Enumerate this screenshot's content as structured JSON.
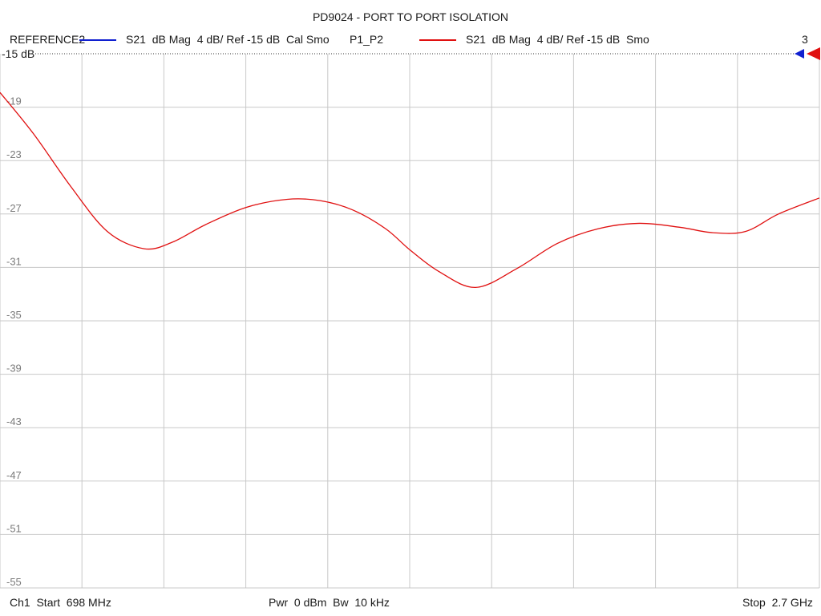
{
  "chart_data": {
    "type": "line",
    "title": "PD9024 - PORT TO PORT ISOLATION",
    "reference_label": "-15 dB",
    "ylim": [
      -55,
      -15
    ],
    "yticks": [
      "-19",
      "-23",
      "-27",
      "-31",
      "-35",
      "-39",
      "-43",
      "-47",
      "-51",
      "-55"
    ],
    "x_start_mhz": 698,
    "x_stop_mhz": 2700,
    "grid": true,
    "legend": [
      {
        "name": "REFERENCE2",
        "desc": "S21  dB Mag  4 dB/ Ref -15 dB  Cal Smo",
        "color": "#1020d0"
      },
      {
        "name": "P1_P2",
        "desc": "S21  dB Mag  4 dB/ Ref -15 dB  Smo",
        "color": "#e01010"
      }
    ],
    "channel_badge": "3",
    "series": [
      {
        "name": "P1_P2",
        "color": "#e01010",
        "x": [
          698,
          780,
          870,
          960,
          1050,
          1120,
          1200,
          1300,
          1400,
          1480,
          1560,
          1640,
          1700,
          1770,
          1860,
          1960,
          2060,
          2160,
          2260,
          2360,
          2440,
          2520,
          2600,
          2700
        ],
        "y": [
          -17.9,
          -21.0,
          -24.9,
          -28.3,
          -29.6,
          -29.1,
          -27.8,
          -26.5,
          -25.9,
          -26.0,
          -26.7,
          -28.1,
          -29.7,
          -31.3,
          -32.5,
          -31.1,
          -29.2,
          -28.1,
          -27.7,
          -28.0,
          -28.4,
          -28.3,
          -27.0,
          -25.8
        ]
      }
    ],
    "footer": {
      "start": "Ch1  Start  698 MHz",
      "power": "Pwr  0 dBm  Bw  10 kHz",
      "stop": "Stop  2.7 GHz"
    }
  }
}
